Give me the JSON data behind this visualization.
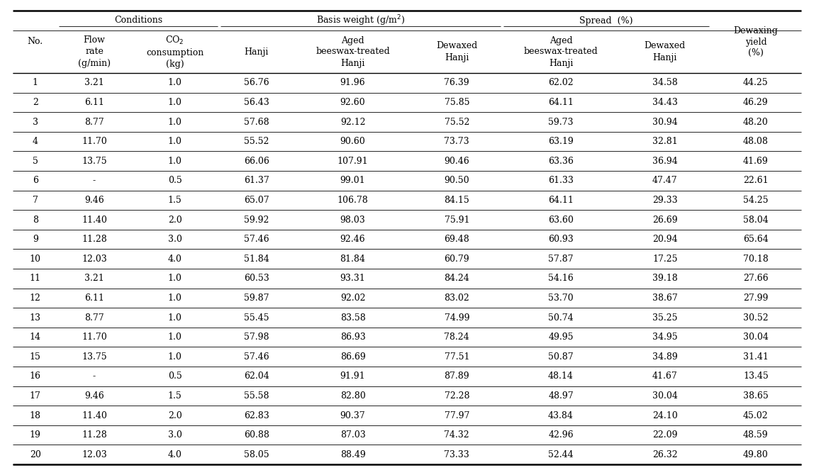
{
  "rows": [
    [
      "1",
      "3.21",
      "1.0",
      "56.76",
      "91.96",
      "76.39",
      "62.02",
      "34.58",
      "44.25"
    ],
    [
      "2",
      "6.11",
      "1.0",
      "56.43",
      "92.60",
      "75.85",
      "64.11",
      "34.43",
      "46.29"
    ],
    [
      "3",
      "8.77",
      "1.0",
      "57.68",
      "92.12",
      "75.52",
      "59.73",
      "30.94",
      "48.20"
    ],
    [
      "4",
      "11.70",
      "1.0",
      "55.52",
      "90.60",
      "73.73",
      "63.19",
      "32.81",
      "48.08"
    ],
    [
      "5",
      "13.75",
      "1.0",
      "66.06",
      "107.91",
      "90.46",
      "63.36",
      "36.94",
      "41.69"
    ],
    [
      "6",
      "-",
      "0.5",
      "61.37",
      "99.01",
      "90.50",
      "61.33",
      "47.47",
      "22.61"
    ],
    [
      "7",
      "9.46",
      "1.5",
      "65.07",
      "106.78",
      "84.15",
      "64.11",
      "29.33",
      "54.25"
    ],
    [
      "8",
      "11.40",
      "2.0",
      "59.92",
      "98.03",
      "75.91",
      "63.60",
      "26.69",
      "58.04"
    ],
    [
      "9",
      "11.28",
      "3.0",
      "57.46",
      "92.46",
      "69.48",
      "60.93",
      "20.94",
      "65.64"
    ],
    [
      "10",
      "12.03",
      "4.0",
      "51.84",
      "81.84",
      "60.79",
      "57.87",
      "17.25",
      "70.18"
    ],
    [
      "11",
      "3.21",
      "1.0",
      "60.53",
      "93.31",
      "84.24",
      "54.16",
      "39.18",
      "27.66"
    ],
    [
      "12",
      "6.11",
      "1.0",
      "59.87",
      "92.02",
      "83.02",
      "53.70",
      "38.67",
      "27.99"
    ],
    [
      "13",
      "8.77",
      "1.0",
      "55.45",
      "83.58",
      "74.99",
      "50.74",
      "35.25",
      "30.52"
    ],
    [
      "14",
      "11.70",
      "1.0",
      "57.98",
      "86.93",
      "78.24",
      "49.95",
      "34.95",
      "30.04"
    ],
    [
      "15",
      "13.75",
      "1.0",
      "57.46",
      "86.69",
      "77.51",
      "50.87",
      "34.89",
      "31.41"
    ],
    [
      "16",
      "-",
      "0.5",
      "62.04",
      "91.91",
      "87.89",
      "48.14",
      "41.67",
      "13.45"
    ],
    [
      "17",
      "9.46",
      "1.5",
      "55.58",
      "82.80",
      "72.28",
      "48.97",
      "30.04",
      "38.65"
    ],
    [
      "18",
      "11.40",
      "2.0",
      "62.83",
      "90.37",
      "77.97",
      "43.84",
      "24.10",
      "45.02"
    ],
    [
      "19",
      "11.28",
      "3.0",
      "60.88",
      "87.03",
      "74.32",
      "42.96",
      "22.09",
      "48.59"
    ],
    [
      "20",
      "12.03",
      "4.0",
      "58.05",
      "88.49",
      "73.33",
      "52.44",
      "26.32",
      "49.80"
    ]
  ],
  "bg_color": "#ffffff",
  "line_color": "#000000",
  "font_size": 9.0,
  "header_font_size": 9.0,
  "lw_thick": 1.8,
  "lw_thin": 0.6,
  "lw_mid": 1.0
}
